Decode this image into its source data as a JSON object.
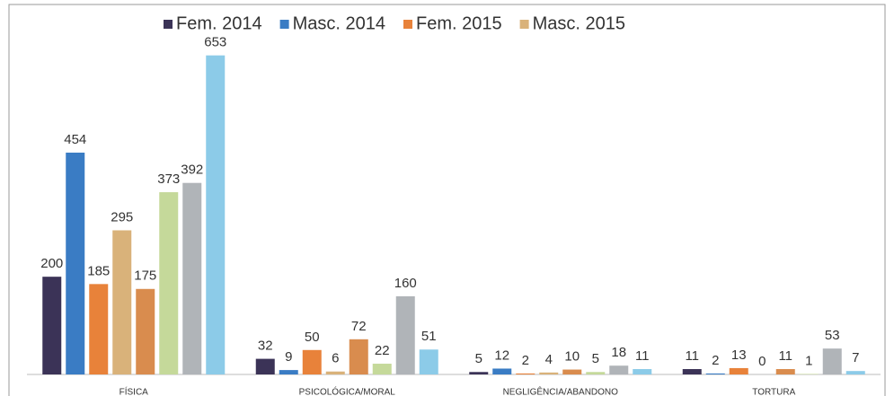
{
  "chart_data": {
    "type": "bar",
    "categories": [
      "FÍSICA",
      "PSICOLÓGICA/MORAL",
      "NEGLIGÊNCIA/ABANDONO",
      "TORTURA"
    ],
    "series": [
      {
        "name": "Fem. 2014",
        "color": "#3b3357",
        "values": [
          200,
          32,
          5,
          11
        ]
      },
      {
        "name": "Masc. 2014",
        "color": "#3a7cc4",
        "values": [
          454,
          9,
          12,
          2
        ]
      },
      {
        "name": "Fem. 2015",
        "color": "#e8823a",
        "values": [
          185,
          50,
          2,
          13
        ]
      },
      {
        "name": "Masc. 2015",
        "color": "#d9b27a",
        "values": [
          295,
          6,
          4,
          0
        ]
      },
      {
        "color": "#d98c4e",
        "values": [
          175,
          72,
          10,
          11
        ]
      },
      {
        "color": "#c5d99a",
        "values": [
          373,
          22,
          5,
          1
        ]
      },
      {
        "color": "#b0b4b8",
        "values": [
          392,
          160,
          18,
          53
        ]
      },
      {
        "color": "#8ccbe8",
        "values": [
          653,
          51,
          11,
          7
        ]
      }
    ],
    "ylim": [
      0,
      680
    ]
  }
}
